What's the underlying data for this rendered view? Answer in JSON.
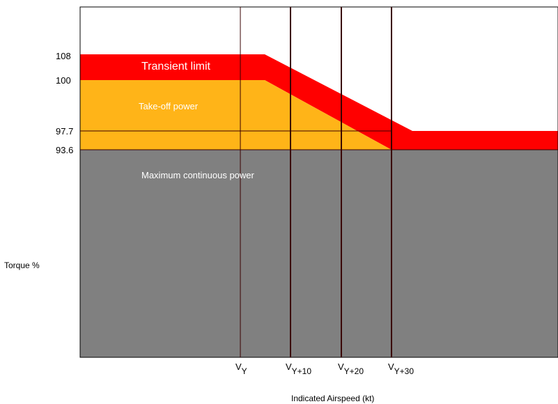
{
  "chart_data": {
    "type": "area",
    "ylabel": "Torque %",
    "xlabel": "Indicated Airspeed (kt)",
    "y_ticks": [
      "108",
      "100",
      "97.7",
      "93.6"
    ],
    "x_ticks": [
      {
        "base": "V",
        "sub": "Y"
      },
      {
        "base": "V",
        "sub": "Y+10"
      },
      {
        "base": "V",
        "sub": "Y+20"
      },
      {
        "base": "V",
        "sub": "Y+30"
      }
    ],
    "regions": [
      {
        "name": "Transient limit",
        "color": "#ff0000"
      },
      {
        "name": "Take-off power",
        "color": "#ffb418"
      },
      {
        "name": "Maximum continuous power",
        "color": "#808080"
      }
    ]
  }
}
